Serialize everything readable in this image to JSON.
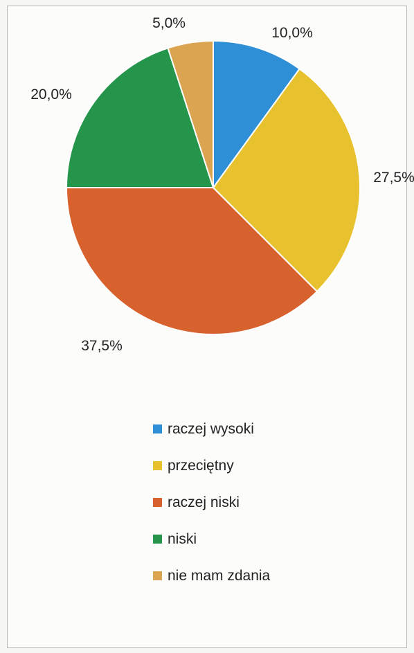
{
  "chart_data": {
    "type": "pie",
    "start_angle_deg": 0,
    "direction": "clockwise",
    "legend_position": "bottom",
    "slices": [
      {
        "label": "raczej wysoki",
        "value": 10.0,
        "display": "10,0%",
        "color": "#2f8fd6"
      },
      {
        "label": "przeciętny",
        "value": 27.5,
        "display": "27,5%",
        "color": "#e8c22e"
      },
      {
        "label": "raczej niski",
        "value": 37.5,
        "display": "37,5%",
        "color": "#d8622e"
      },
      {
        "label": "niski",
        "value": 20.0,
        "display": "20,0%",
        "color": "#26954c"
      },
      {
        "label": "nie mam zdania",
        "value": 5.0,
        "display": "5,0%",
        "color": "#dba451"
      }
    ]
  }
}
